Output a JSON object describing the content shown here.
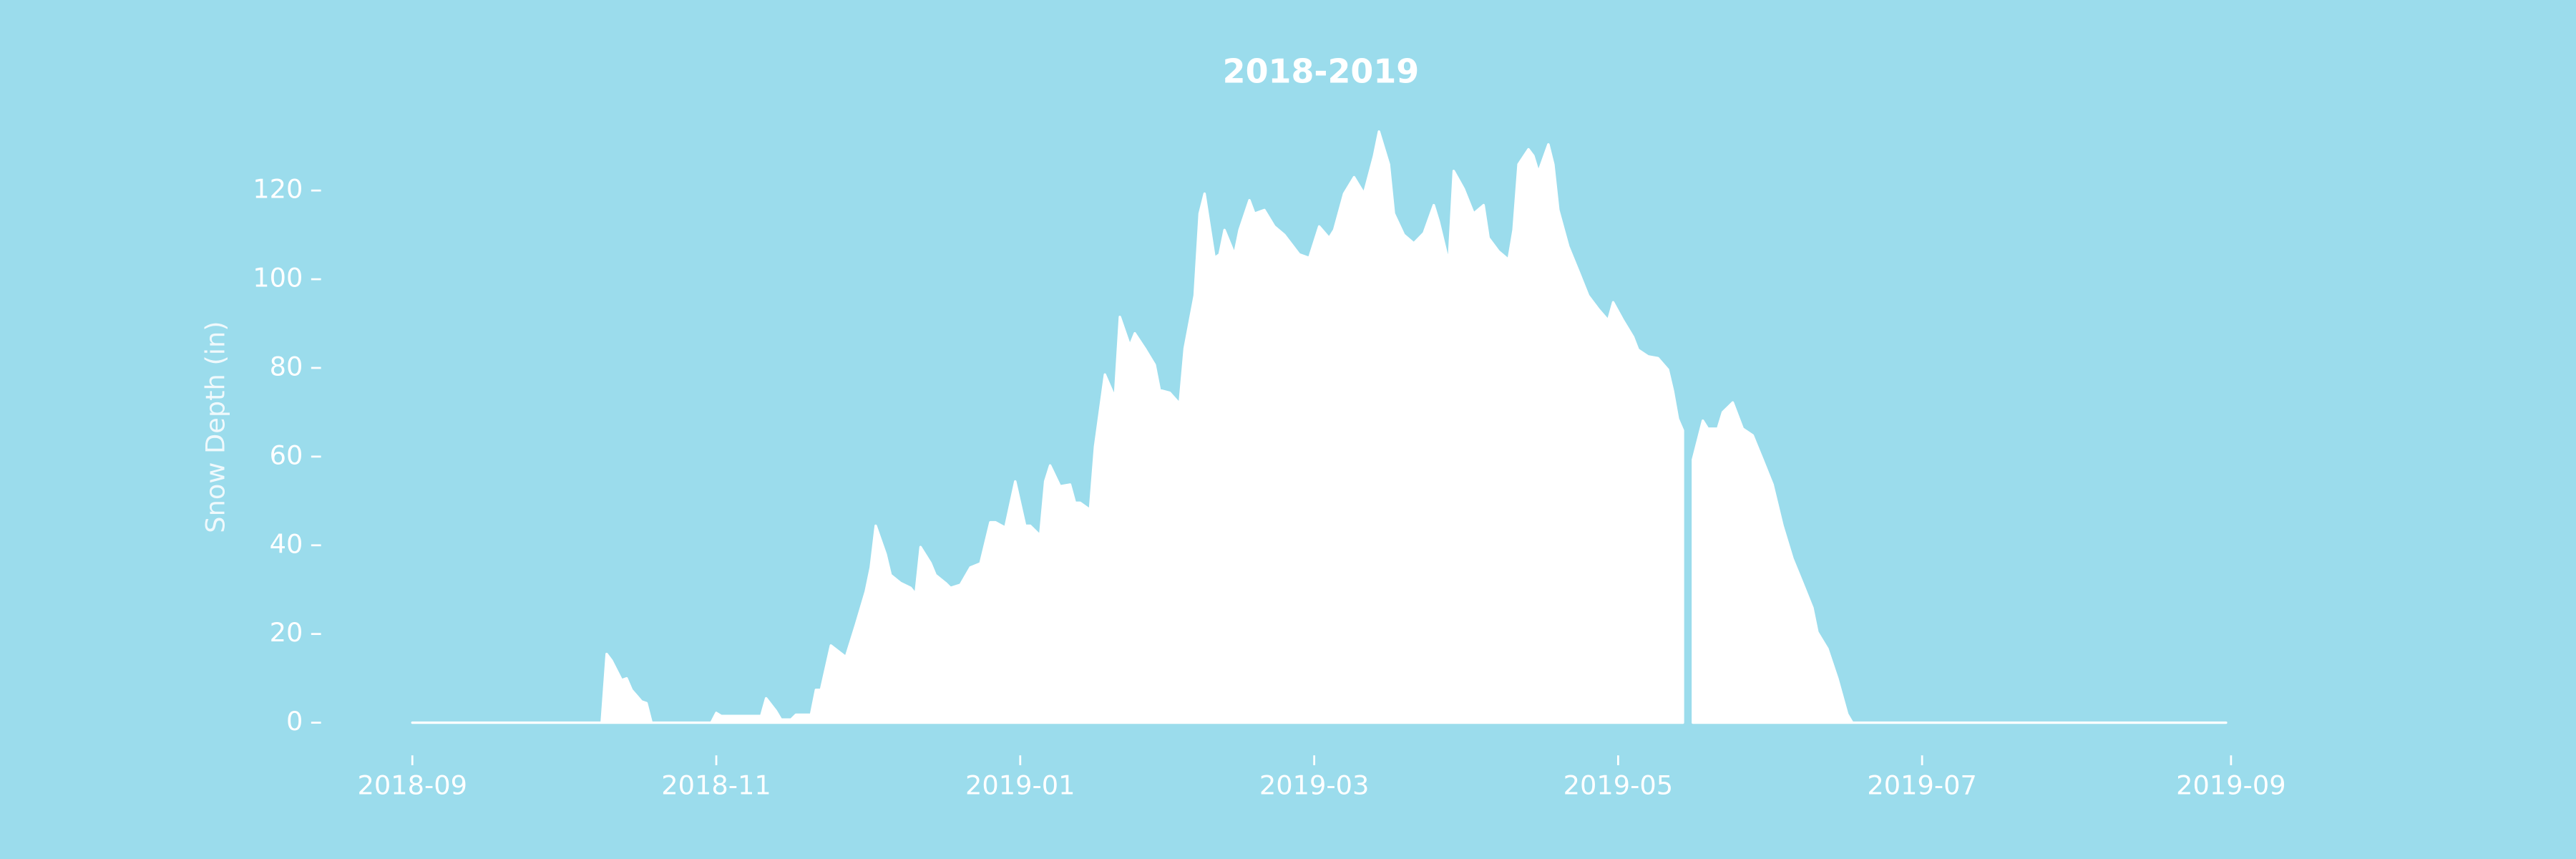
{
  "chart_data": {
    "type": "area",
    "title": "2018-2019",
    "y_label": "Snow Depth (in)",
    "color": "#ffffff",
    "x": [
      17775,
      17813,
      17814,
      17815,
      17817,
      17818,
      17819,
      17821,
      17822,
      17823,
      17835,
      17836,
      17837,
      17845,
      17846,
      17848,
      17849,
      17851,
      17852,
      17855,
      17856,
      17857,
      17859,
      17862,
      17864,
      17866,
      17867,
      17868,
      17870,
      17871,
      17873,
      17875,
      17876,
      17877,
      17879,
      17880,
      17882,
      17883,
      17885,
      17887,
      17889,
      17891,
      17892,
      17894,
      17896,
      17898,
      17899,
      17901,
      17902,
      17903,
      17905,
      17907,
      17908,
      17909,
      17911,
      17912,
      17914,
      17916,
      17917,
      17919,
      17920,
      17922,
      17924,
      17925,
      17927,
      17929,
      17930,
      17932,
      17933,
      17934,
      17936,
      17937,
      17938,
      17940,
      17941,
      17943,
      17944,
      17946,
      17948,
      17950,
      17953,
      17955,
      17957,
      17959,
      17960,
      17962,
      17964,
      17966,
      17968,
      17969,
      17971,
      17972,
      17974,
      17976,
      17978,
      17980,
      17981,
      17983,
      17984,
      17986,
      17988,
      17990,
      17991,
      17993,
      17995,
      17996,
      17997,
      17999,
      18000,
      18001,
      18003,
      18004,
      18005,
      18007,
      18009,
      18011,
      18013,
      18015,
      18016,
      18018,
      18020,
      18021,
      18023,
      18025,
      18027,
      18028,
      18029,
      18030,
      18031,
      18032,
      18034,
      18035,
      18037,
      18038,
      18040,
      18042,
      18044,
      18046,
      18048,
      18050,
      18052,
      18054,
      18056,
      18057,
      18059,
      18061,
      18063,
      18064,
      18139
    ],
    "values": [
      0,
      0,
      15.5,
      14,
      9.6,
      10,
      7.4,
      4.8,
      4.4,
      0,
      0,
      2.2,
      1.5,
      1.5,
      5.5,
      2.6,
      0.7,
      0.7,
      1.8,
      1.8,
      7.4,
      7.4,
      17.4,
      14.8,
      22,
      29.6,
      35,
      44.4,
      38,
      33.3,
      31.5,
      30.4,
      29,
      39.6,
      36,
      33.3,
      31.5,
      30.4,
      31.1,
      35,
      35.9,
      45.2,
      45.2,
      44,
      54.4,
      44.4,
      44.4,
      42.2,
      54.4,
      58,
      53.3,
      53.7,
      49.6,
      49.6,
      48,
      62.2,
      78.5,
      73.3,
      91.5,
      85,
      87.8,
      84.4,
      80.7,
      75,
      74.4,
      71.9,
      84.4,
      96.3,
      114.8,
      119.3,
      104.8,
      105.6,
      111.1,
      105.6,
      111.1,
      117.8,
      114.8,
      115.6,
      111.9,
      110,
      105.6,
      104.8,
      111.9,
      109.3,
      111.1,
      119.3,
      123,
      119.3,
      127.8,
      133.3,
      125.9,
      114.8,
      110,
      108.1,
      110.4,
      116.7,
      113,
      103.7,
      124.4,
      120.4,
      114.8,
      116.7,
      109.3,
      106.3,
      104.4,
      111.1,
      125.9,
      129.3,
      127.8,
      124.1,
      130.4,
      125.9,
      115.6,
      107.4,
      101.9,
      96.3,
      93.3,
      90.7,
      94.8,
      90.7,
      87,
      84.1,
      82.6,
      82.2,
      79.6,
      74.8,
      68.5,
      65.9,
      null,
      59.3,
      68.1,
      66.3,
      66.3,
      70,
      72.2,
      66.3,
      64.8,
      59.3,
      53.7,
      44.4,
      37,
      31.5,
      25.9,
      20.4,
      16.7,
      10,
      1.9,
      0,
      0
    ],
    "xlim": [
      17757,
      18158
    ],
    "xticks": [
      {
        "value": 17775,
        "label": "2018-09"
      },
      {
        "value": 17836,
        "label": "2018-11"
      },
      {
        "value": 17897,
        "label": "2019-01"
      },
      {
        "value": 17956,
        "label": "2019-03"
      },
      {
        "value": 18017,
        "label": "2019-05"
      },
      {
        "value": 18078,
        "label": "2019-07"
      },
      {
        "value": 18140,
        "label": "2019-09"
      }
    ],
    "ylim": [
      -7,
      140
    ],
    "yticks": [
      0,
      20,
      40,
      60,
      80,
      100,
      120
    ]
  }
}
